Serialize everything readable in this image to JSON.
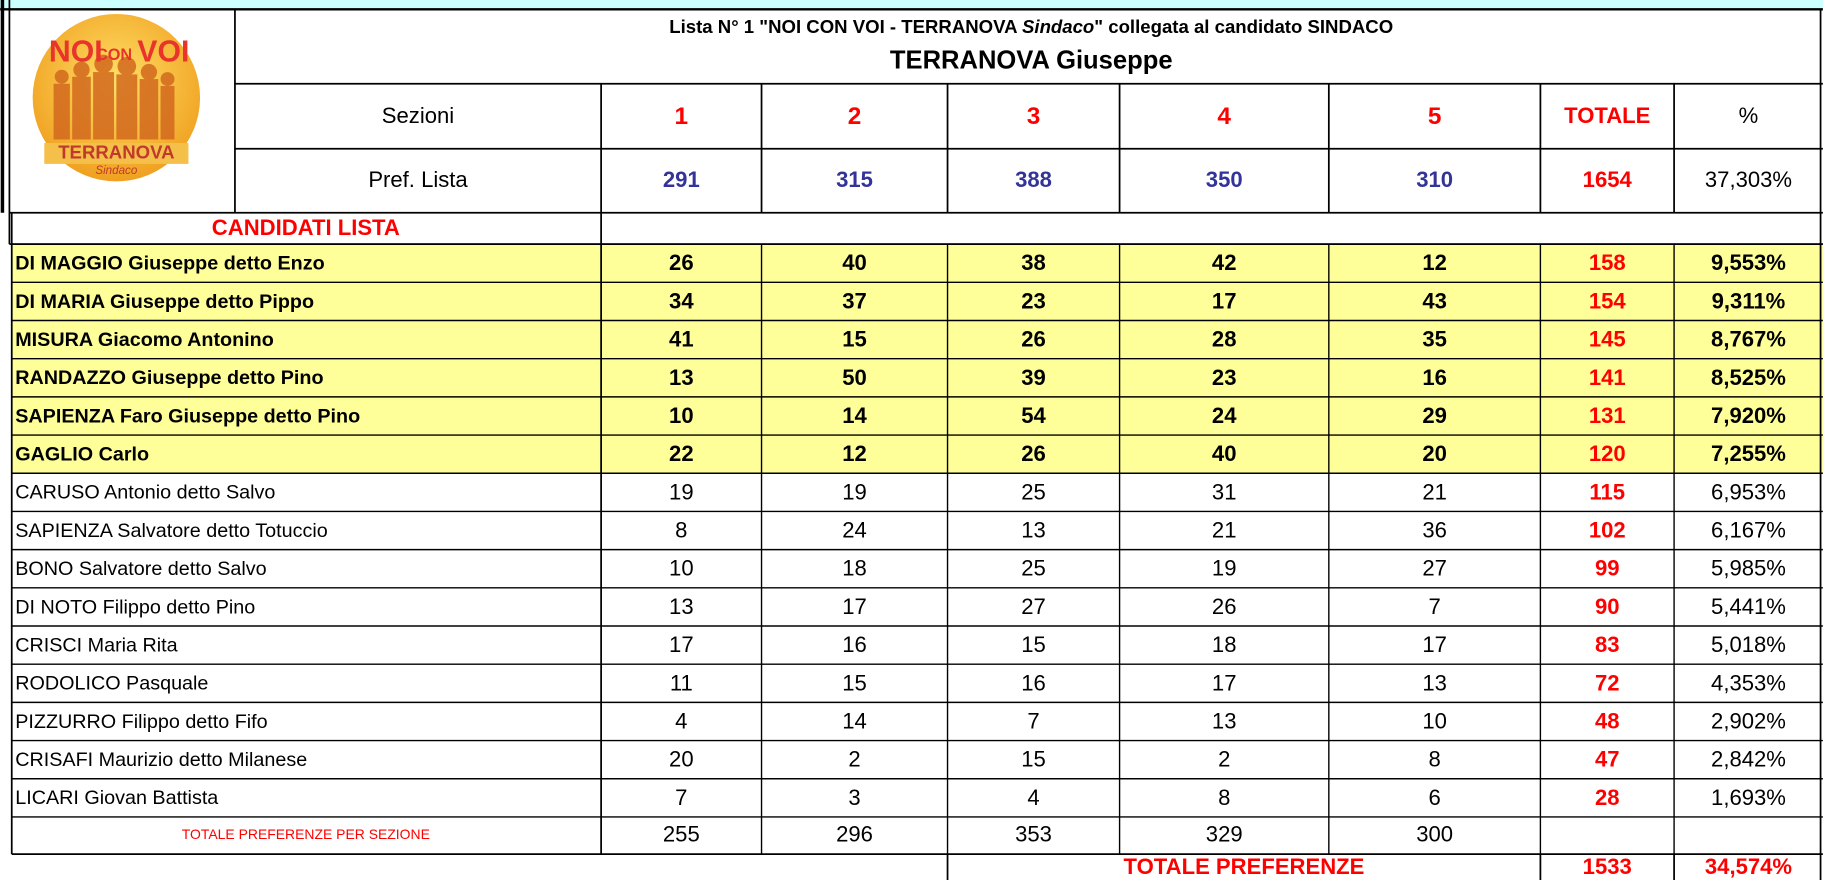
{
  "header": {
    "title_pre": "Lista  N° 1 \"NOI CON VOI - TERRANOVA ",
    "title_italic": "Sindaco",
    "title_post": "\" collegata al candidato  SINDACO",
    "candidate": "TERRANOVA Giuseppe"
  },
  "logo": {
    "top": "NOI",
    "middle": "CON",
    "top_right": "VOI",
    "bottom": "TERRANOVA",
    "script": "Sindaco"
  },
  "table": {
    "section_label": "Sezioni",
    "sections": [
      "1",
      "2",
      "3",
      "4",
      "5"
    ],
    "total_label": "TOTALE",
    "percent_label": "%",
    "list_label": "Pref. Lista",
    "list_values": [
      291,
      315,
      388,
      350,
      310
    ],
    "list_total": 1654,
    "list_percent": "37,303%",
    "candidates_label": "CANDIDATI LISTA",
    "candidates": [
      {
        "name": "DI MAGGIO Giuseppe detto Enzo",
        "values": [
          26,
          40,
          38,
          42,
          12
        ],
        "total": 158,
        "percent": "9,553%",
        "bold": true
      },
      {
        "name": "DI MARIA Giuseppe detto Pippo",
        "values": [
          34,
          37,
          23,
          17,
          43
        ],
        "total": 154,
        "percent": "9,311%",
        "bold": true
      },
      {
        "name": "MISURA Giacomo Antonino",
        "values": [
          41,
          15,
          26,
          28,
          35
        ],
        "total": 145,
        "percent": "8,767%",
        "bold": true
      },
      {
        "name": "RANDAZZO Giuseppe detto Pino",
        "values": [
          13,
          50,
          39,
          23,
          16
        ],
        "total": 141,
        "percent": "8,525%",
        "bold": true
      },
      {
        "name": "SAPIENZA Faro Giuseppe detto Pino",
        "values": [
          10,
          14,
          54,
          24,
          29
        ],
        "total": 131,
        "percent": "7,920%",
        "bold": true
      },
      {
        "name": "GAGLIO Carlo",
        "values": [
          22,
          12,
          26,
          40,
          20
        ],
        "total": 120,
        "percent": "7,255%",
        "bold": true
      },
      {
        "name": "CARUSO Antonio detto Salvo",
        "values": [
          19,
          19,
          25,
          31,
          21
        ],
        "total": 115,
        "percent": "6,953%",
        "bold": false
      },
      {
        "name": "SAPIENZA Salvatore detto Totuccio",
        "values": [
          8,
          24,
          13,
          21,
          36
        ],
        "total": 102,
        "percent": "6,167%",
        "bold": false
      },
      {
        "name": "BONO Salvatore detto Salvo",
        "values": [
          10,
          18,
          25,
          19,
          27
        ],
        "total": 99,
        "percent": "5,985%",
        "bold": false
      },
      {
        "name": "DI NOTO Filippo detto Pino",
        "values": [
          13,
          17,
          27,
          26,
          7
        ],
        "total": 90,
        "percent": "5,441%",
        "bold": false
      },
      {
        "name": "CRISCI Maria Rita",
        "values": [
          17,
          16,
          15,
          18,
          17
        ],
        "total": 83,
        "percent": "5,018%",
        "bold": false
      },
      {
        "name": "RODOLICO Pasquale",
        "values": [
          11,
          15,
          16,
          17,
          13
        ],
        "total": 72,
        "percent": "4,353%",
        "bold": false
      },
      {
        "name": "PIZZURRO Filippo detto Fifo",
        "values": [
          4,
          14,
          7,
          13,
          10
        ],
        "total": 48,
        "percent": "2,902%",
        "bold": false
      },
      {
        "name": "CRISAFI Maurizio detto Milanese",
        "values": [
          20,
          2,
          15,
          2,
          8
        ],
        "total": 47,
        "percent": "2,842%",
        "bold": false
      },
      {
        "name": "LICARI Giovan Battista",
        "values": [
          7,
          3,
          4,
          8,
          6
        ],
        "total": 28,
        "percent": "1,693%",
        "bold": false
      }
    ],
    "section_totals_label": "TOTALE PREFERENZE PER SEZIONE",
    "section_totals": [
      255,
      296,
      353,
      329,
      300
    ],
    "grand_total_label": "TOTALE PREFERENZE",
    "grand_total": 1533,
    "grand_percent": "34,574%"
  }
}
